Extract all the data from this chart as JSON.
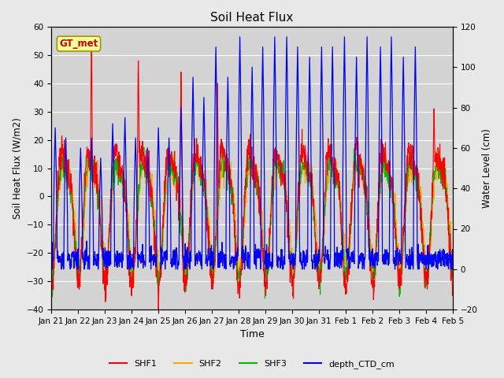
{
  "title": "Soil Heat Flux",
  "ylabel_left": "Soil Heat Flux (W/m2)",
  "ylabel_right": "Water Level (cm)",
  "xlabel": "Time",
  "annotation": "GT_met",
  "ylim_left": [
    -40,
    60
  ],
  "ylim_right": [
    -20,
    120
  ],
  "yticks_left": [
    -40,
    -30,
    -20,
    -10,
    0,
    10,
    20,
    30,
    40,
    50,
    60
  ],
  "yticks_right": [
    -20,
    0,
    20,
    40,
    60,
    80,
    100,
    120
  ],
  "xtick_labels": [
    "Jan 21",
    "Jan 22",
    "Jan 23",
    "Jan 24",
    "Jan 25",
    "Jan 26",
    "Jan 27",
    "Jan 28",
    "Jan 29",
    "Jan 30",
    "Jan 31",
    "Feb 1",
    "Feb 2",
    "Feb 3",
    "Feb 4",
    "Feb 5"
  ],
  "colors": {
    "SHF1": "#FF0000",
    "SHF2": "#FFA500",
    "SHF3": "#00BB00",
    "depth_CTD_cm": "#0000FF"
  },
  "fig_bg_color": "#E8E8E8",
  "plot_bg_color": "#D3D3D3",
  "annotation_facecolor": "#FFFF99",
  "annotation_edgecolor": "#999900",
  "annotation_textcolor": "#CC0000"
}
